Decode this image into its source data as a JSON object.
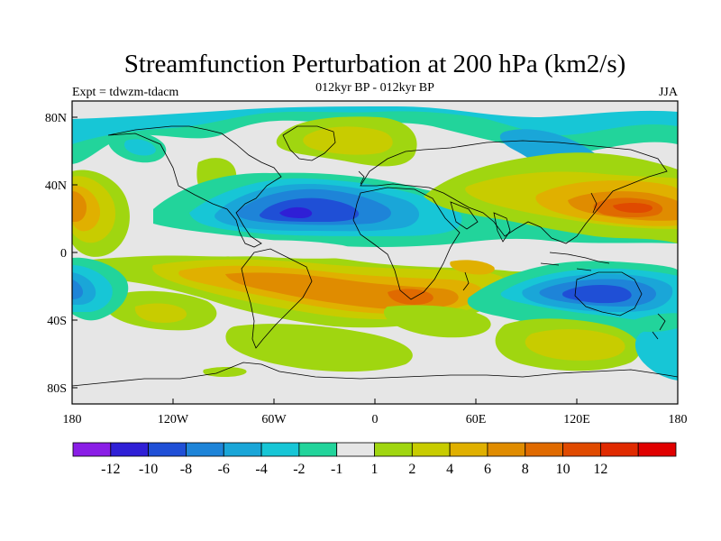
{
  "title": "Streamfunction Perturbation at 200 hPa (km2/s)",
  "left_label": "Expt = tdwzm-tdacm",
  "center_label": "012kyr BP - 012kyr BP",
  "right_label": "JJA",
  "lat_ticks": [
    "80N",
    "40N",
    "0",
    "40S",
    "80S"
  ],
  "lon_ticks": [
    "180",
    "120W",
    "60W",
    "0",
    "60E",
    "120E",
    "180"
  ],
  "colorbar": {
    "colors": [
      "#8a1ee6",
      "#2f1fd6",
      "#1f4fd6",
      "#1e84d8",
      "#1aa6d8",
      "#17c6d6",
      "#22d49b",
      "#e6e6e6",
      "#a0d610",
      "#c8cc00",
      "#e0b000",
      "#e08c00",
      "#e06a00",
      "#e04a00",
      "#e02a00",
      "#e00000"
    ],
    "labels": [
      "-12",
      "-10",
      "-8",
      "-6",
      "-4",
      "-2",
      "-1",
      "1",
      "2",
      "4",
      "6",
      "8",
      "10",
      "12"
    ]
  },
  "map_colors": {
    "background": "#e6e6e6",
    "coast": "#000000"
  }
}
